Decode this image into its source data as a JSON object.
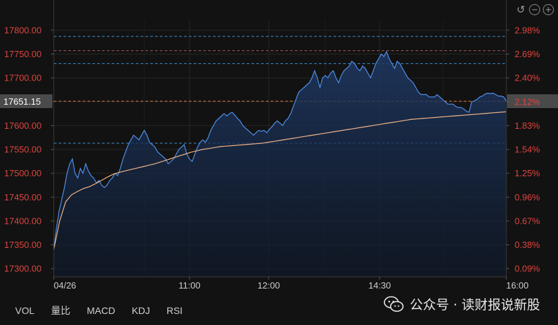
{
  "toolbar": {
    "undo_icon": "undo-icon",
    "zoom_out_icon": "zoom-out-icon",
    "zoom_in_icon": "zoom-in-icon"
  },
  "tabs": [
    "VOL",
    "量比",
    "MACD",
    "KDJ",
    "RSI"
  ],
  "watermark": {
    "text": "公众号 · 读财报说新股",
    "icon": "wechat-icon"
  },
  "colors": {
    "background": "#121212",
    "price_line": "#4f8fe8",
    "avg_line": "#f0b487",
    "axis_text": "#e0443e",
    "price_tag_bg": "#4a4a4a",
    "current_line": "#e07a3e",
    "blue_dash": "#3a8fd0",
    "red_dash": "#a85454"
  },
  "chart_data": {
    "type": "area",
    "x_ticks": [
      "04/26",
      "11:00",
      "12:00",
      "14:30",
      "16:00"
    ],
    "y_ticks_left": [
      "17800.00",
      "17750.00",
      "17700.00",
      "17650.00",
      "17600.00",
      "17550.00",
      "17500.00",
      "17450.00",
      "17400.00",
      "17350.00",
      "17300.00"
    ],
    "y_ticks_right": [
      "2.98%",
      "2.69%",
      "2.40%",
      "2.12%",
      "1.83%",
      "1.54%",
      "1.25%",
      "0.96%",
      "0.67%",
      "0.38%",
      "0.09%"
    ],
    "ylim": [
      17283,
      17820
    ],
    "current_price": "17651.15",
    "reference_lines": [
      {
        "value": 17787,
        "color": "blue"
      },
      {
        "value": 17757,
        "color": "red"
      },
      {
        "value": 17730,
        "color": "blue"
      },
      {
        "value": 17651.15,
        "color": "orange"
      },
      {
        "value": 17563,
        "color": "blue"
      }
    ],
    "series": [
      {
        "type": "price",
        "values": [
          17340,
          17385,
          17420,
          17445,
          17470,
          17500,
          17520,
          17530,
          17500,
          17490,
          17510,
          17500,
          17520,
          17505,
          17495,
          17490,
          17480,
          17485,
          17475,
          17470,
          17475,
          17485,
          17490,
          17500,
          17495,
          17510,
          17530,
          17545,
          17560,
          17570,
          17580,
          17575,
          17570,
          17580,
          17590,
          17580,
          17565,
          17560,
          17555,
          17545,
          17540,
          17535,
          17530,
          17520,
          17525,
          17530,
          17540,
          17550,
          17555,
          17560,
          17540,
          17530,
          17525,
          17540,
          17555,
          17565,
          17570,
          17565,
          17575,
          17590,
          17600,
          17610,
          17615,
          17620,
          17625,
          17620,
          17625,
          17628,
          17622,
          17615,
          17610,
          17600,
          17595,
          17590,
          17585,
          17580,
          17585,
          17590,
          17588,
          17590,
          17585,
          17592,
          17598,
          17605,
          17610,
          17605,
          17600,
          17610,
          17615,
          17625,
          17640,
          17655,
          17670,
          17675,
          17680,
          17685,
          17690,
          17700,
          17715,
          17700,
          17680,
          17700,
          17705,
          17700,
          17710,
          17715,
          17700,
          17690,
          17705,
          17715,
          17720,
          17725,
          17735,
          17730,
          17720,
          17715,
          17725,
          17720,
          17710,
          17700,
          17715,
          17730,
          17740,
          17750,
          17745,
          17755,
          17740,
          17730,
          17720,
          17735,
          17730,
          17720,
          17710,
          17700,
          17695,
          17690,
          17680,
          17670,
          17665,
          17665,
          17665,
          17660,
          17660,
          17660,
          17665,
          17660,
          17655,
          17650,
          17645,
          17645,
          17645,
          17640,
          17638,
          17638,
          17635,
          17630,
          17628,
          17650,
          17652,
          17655,
          17660,
          17662,
          17666,
          17668,
          17667,
          17668,
          17665,
          17662,
          17662,
          17660,
          17651.15
        ]
      },
      {
        "type": "average",
        "values": [
          17340,
          17400,
          17440,
          17455,
          17462,
          17468,
          17472,
          17478,
          17485,
          17492,
          17498,
          17502,
          17505,
          17508,
          17511,
          17514,
          17517,
          17520,
          17524,
          17528,
          17532,
          17536,
          17540,
          17544,
          17547,
          17550,
          17552,
          17554,
          17556,
          17557,
          17558,
          17559,
          17560,
          17561,
          17562,
          17563,
          17565,
          17567,
          17569,
          17571,
          17573,
          17575,
          17577,
          17579,
          17581,
          17583,
          17585,
          17587,
          17589,
          17591,
          17593,
          17595,
          17597,
          17599,
          17601,
          17603,
          17605,
          17607,
          17609,
          17611,
          17613,
          17614,
          17615,
          17616,
          17617,
          17618,
          17619,
          17620,
          17621,
          17622,
          17623,
          17624,
          17625,
          17626,
          17627,
          17628,
          17629
        ]
      }
    ]
  }
}
